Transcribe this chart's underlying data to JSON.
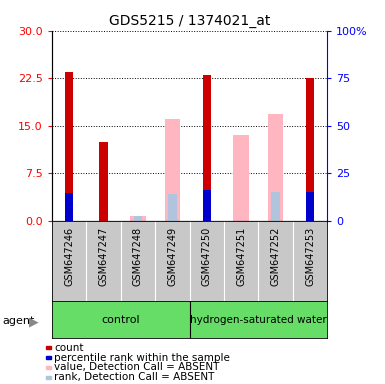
{
  "title": "GDS5215 / 1374021_at",
  "samples": [
    "GSM647246",
    "GSM647247",
    "GSM647248",
    "GSM647249",
    "GSM647250",
    "GSM647251",
    "GSM647252",
    "GSM647253"
  ],
  "count_values": [
    23.5,
    12.5,
    null,
    null,
    23.0,
    null,
    null,
    22.5
  ],
  "percentile_values": [
    14.8,
    null,
    null,
    null,
    16.0,
    null,
    null,
    15.0
  ],
  "absent_value_values": [
    null,
    null,
    0.8,
    16.0,
    null,
    13.5,
    16.8,
    null
  ],
  "absent_rank_values": [
    null,
    null,
    2.5,
    14.0,
    null,
    null,
    15.0,
    null
  ],
  "ylim_left": [
    0,
    30
  ],
  "ylim_right": [
    0,
    100
  ],
  "yticks_left": [
    0,
    7.5,
    15,
    22.5,
    30
  ],
  "yticks_right": [
    0,
    25,
    50,
    75,
    100
  ],
  "yticklabels_right": [
    "0",
    "25",
    "50",
    "75",
    "100%"
  ],
  "count_color": "#cc0000",
  "percentile_color": "#0000cc",
  "absent_value_color": "#ffb6c1",
  "absent_rank_color": "#b0c4de",
  "bg_samples": "#c8c8c8",
  "bg_group": "#66dd66",
  "legend_items": [
    {
      "color": "#cc0000",
      "label": "count"
    },
    {
      "color": "#0000cc",
      "label": "percentile rank within the sample"
    },
    {
      "color": "#ffb6c1",
      "label": "value, Detection Call = ABSENT"
    },
    {
      "color": "#b0c4de",
      "label": "rank, Detection Call = ABSENT"
    }
  ]
}
